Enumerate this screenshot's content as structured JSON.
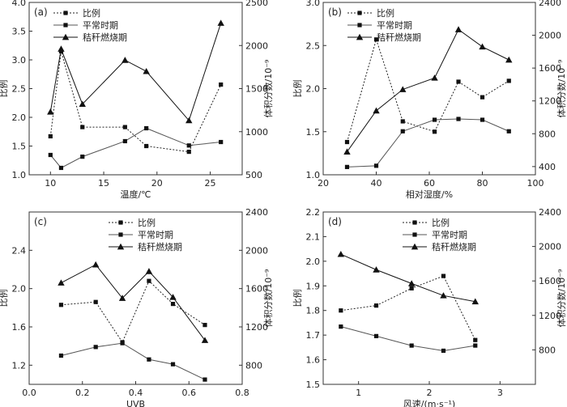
{
  "chart_data": [
    {
      "type": "line",
      "panel_label": "(a)",
      "xlabel": "温度/℃",
      "ylabel": "比例",
      "y2label": "体积分数/10⁻⁹",
      "xlim": [
        8,
        28
      ],
      "ylim": [
        1.0,
        4.0
      ],
      "y2lim": [
        500,
        2500
      ],
      "xticks": [
        10,
        15,
        20,
        25
      ],
      "yticks": [
        1.0,
        1.5,
        2.0,
        2.5,
        3.0,
        3.5,
        4.0
      ],
      "y2ticks": [
        500,
        1000,
        1500,
        2000,
        2500
      ],
      "legend_position": "top-left",
      "series": [
        {
          "name": "比例",
          "axis": "left",
          "style": "dotted-square",
          "x": [
            10,
            11,
            13,
            17,
            19,
            23,
            26
          ],
          "y": [
            1.67,
            3.15,
            1.83,
            1.83,
            1.5,
            1.4,
            2.57
          ]
        },
        {
          "name": "平常时期",
          "axis": "right",
          "style": "solid-square",
          "x": [
            10,
            11,
            13,
            17,
            19,
            23,
            26
          ],
          "y": [
            730,
            580,
            710,
            890,
            1040,
            840,
            880
          ]
        },
        {
          "name": "秸秆燃烧期",
          "axis": "right",
          "style": "solid-triangle",
          "x": [
            10,
            11,
            13,
            17,
            19,
            23,
            26
          ],
          "y": [
            1230,
            1960,
            1320,
            1830,
            1700,
            1130,
            2260
          ]
        }
      ]
    },
    {
      "type": "line",
      "panel_label": "(b)",
      "xlabel": "相对湿度/%",
      "ylabel": "比例",
      "y2label": "体积分数/10⁻⁹",
      "xlim": [
        20,
        100
      ],
      "ylim": [
        1.0,
        3.0
      ],
      "y2lim": [
        300,
        2400
      ],
      "xticks": [
        20,
        40,
        60,
        80,
        100
      ],
      "yticks": [
        1.0,
        1.5,
        2.0,
        2.5,
        3.0
      ],
      "y2ticks": [
        400,
        800,
        1200,
        1600,
        2000,
        2400
      ],
      "legend_position": "top-left",
      "series": [
        {
          "name": "比例",
          "axis": "left",
          "style": "dotted-square",
          "x": [
            29,
            40,
            50,
            62,
            71,
            80,
            90
          ],
          "y": [
            1.38,
            2.57,
            1.62,
            1.5,
            2.08,
            1.9,
            2.09
          ]
        },
        {
          "name": "平常时期",
          "axis": "right",
          "style": "solid-square",
          "x": [
            29,
            40,
            50,
            62,
            71,
            80,
            90
          ],
          "y": [
            395,
            410,
            830,
            970,
            980,
            970,
            830
          ]
        },
        {
          "name": "秸秆燃烧期",
          "axis": "right",
          "style": "solid-triangle",
          "x": [
            29,
            40,
            50,
            62,
            71,
            80,
            90
          ],
          "y": [
            580,
            1080,
            1340,
            1480,
            2070,
            1860,
            1700
          ]
        }
      ]
    },
    {
      "type": "line",
      "panel_label": "(c)",
      "xlabel": "UVB",
      "ylabel": "比例",
      "y2label": "体积分数/10⁻⁹",
      "xlim": [
        0,
        0.8
      ],
      "ylim": [
        1.0,
        2.8
      ],
      "y2lim": [
        600,
        2400
      ],
      "xticks": [
        0,
        0.2,
        0.4,
        0.6,
        0.8
      ],
      "yticks": [
        1.2,
        1.6,
        2.0,
        2.4
      ],
      "y2ticks": [
        800,
        1200,
        1600,
        2000,
        2400
      ],
      "legend_position": "top-right",
      "series": [
        {
          "name": "比例",
          "axis": "left",
          "style": "dotted-square",
          "x": [
            0.12,
            0.25,
            0.35,
            0.45,
            0.54,
            0.66
          ],
          "y": [
            1.83,
            1.86,
            1.44,
            2.08,
            1.84,
            1.62
          ]
        },
        {
          "name": "平常时期",
          "axis": "right",
          "style": "solid-square",
          "x": [
            0.12,
            0.25,
            0.35,
            0.45,
            0.54,
            0.66
          ],
          "y": [
            900,
            990,
            1030,
            860,
            810,
            650
          ]
        },
        {
          "name": "秸秆燃烧期",
          "axis": "right",
          "style": "solid-triangle",
          "x": [
            0.12,
            0.25,
            0.35,
            0.45,
            0.54,
            0.66
          ],
          "y": [
            1660,
            1850,
            1500,
            1780,
            1510,
            1060
          ]
        }
      ]
    },
    {
      "type": "line",
      "panel_label": "(d)",
      "xlabel": "风速/(m·s⁻¹)",
      "ylabel": "比例",
      "y2label": "体积分数/10⁻⁹",
      "xlim": [
        0.5,
        3.5
      ],
      "ylim": [
        1.5,
        2.2
      ],
      "y2lim": [
        400,
        2400
      ],
      "xticks": [
        1,
        2,
        3
      ],
      "yticks": [
        1.5,
        1.6,
        1.7,
        1.8,
        1.9,
        2.0,
        2.1,
        2.2
      ],
      "y2ticks": [
        800,
        1200,
        1600,
        2000,
        2400
      ],
      "legend_position": "top-right",
      "series": [
        {
          "name": "比例",
          "axis": "left",
          "style": "dotted-square",
          "x": [
            0.75,
            1.25,
            1.75,
            2.2,
            2.65
          ],
          "y": [
            1.8,
            1.82,
            1.89,
            1.94,
            1.68
          ]
        },
        {
          "name": "平常时期",
          "axis": "right",
          "style": "solid-square",
          "x": [
            0.75,
            1.25,
            1.75,
            2.2,
            2.65
          ],
          "y": [
            1070,
            960,
            850,
            790,
            850
          ]
        },
        {
          "name": "秸秆燃烧期",
          "axis": "right",
          "style": "solid-triangle",
          "x": [
            0.75,
            1.25,
            1.75,
            2.2,
            2.65
          ],
          "y": [
            1910,
            1730,
            1570,
            1430,
            1360
          ]
        }
      ]
    }
  ]
}
